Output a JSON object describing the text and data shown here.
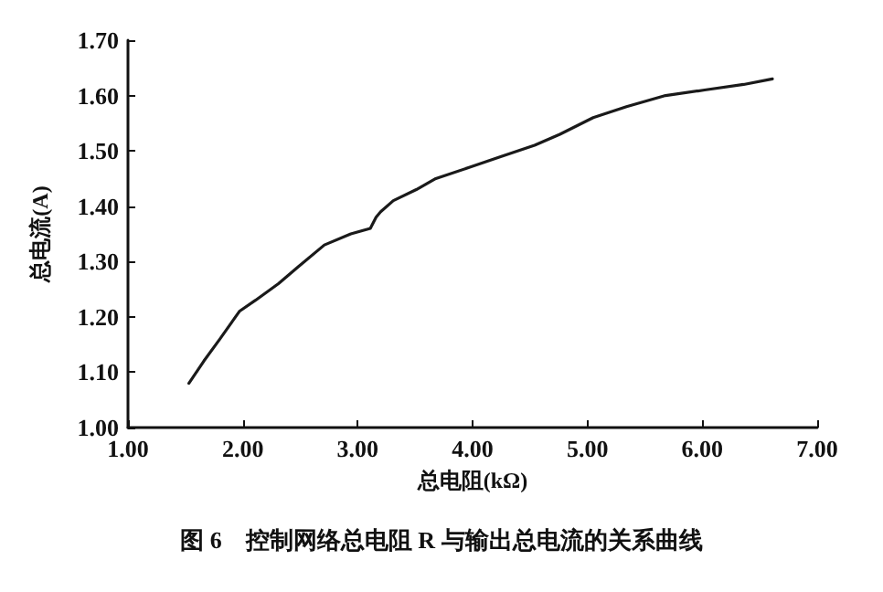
{
  "chart_data": {
    "type": "line",
    "xlabel": "总电阻(kΩ)",
    "ylabel": "总电流(A)",
    "annotations": [
      "图 6　控制网络总电阻 R 与输出总电流的关系曲线"
    ],
    "xlim": [
      1,
      7
    ],
    "ylim": [
      1,
      1.7
    ],
    "xticks": [
      {
        "value": 1,
        "label": "1.00"
      },
      {
        "value": 2,
        "label": "2.00"
      },
      {
        "value": 3,
        "label": "3.00"
      },
      {
        "value": 4,
        "label": "4.00"
      },
      {
        "value": 5,
        "label": "5.00"
      },
      {
        "value": 6,
        "label": "6.00"
      },
      {
        "value": 7,
        "label": "7.00"
      }
    ],
    "yticks": [
      {
        "value": 1,
        "label": "1.00"
      },
      {
        "value": 1.1,
        "label": "1.10"
      },
      {
        "value": 1.2,
        "label": "1.20"
      },
      {
        "value": 1.3,
        "label": "1.30"
      },
      {
        "value": 1.4,
        "label": "1.40"
      },
      {
        "value": 1.5,
        "label": "1.50"
      },
      {
        "value": 1.6,
        "label": "1.60"
      },
      {
        "value": 1.7,
        "label": "1.70"
      }
    ],
    "grid": false,
    "marker": "none",
    "line_style": "solid",
    "series": [
      {
        "color": "#1a1a1a",
        "x": [
          1.53,
          1.66,
          1.8,
          1.97,
          2.11,
          2.31,
          2.48,
          2.71,
          2.94,
          3.11,
          3.16,
          3.2,
          3.31,
          3.51,
          3.68,
          3.97,
          4.25,
          4.54,
          4.76,
          5.05,
          5.34,
          5.68,
          6.02,
          6.36,
          6.61
        ],
        "values": [
          1.08,
          1.12,
          1.16,
          1.21,
          1.23,
          1.26,
          1.29,
          1.33,
          1.35,
          1.36,
          1.38,
          1.39,
          1.41,
          1.43,
          1.45,
          1.47,
          1.49,
          1.51,
          1.53,
          1.56,
          1.58,
          1.6,
          1.61,
          1.62,
          1.63
        ]
      }
    ]
  }
}
